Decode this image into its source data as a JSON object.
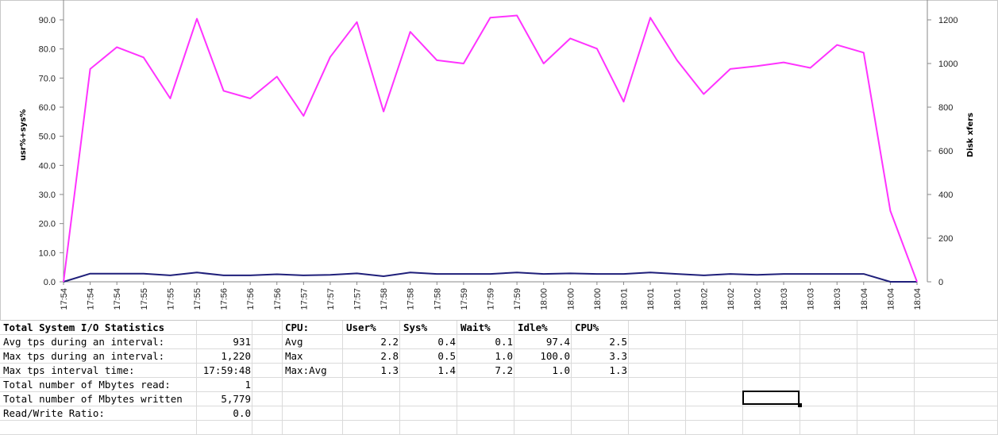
{
  "chart_data": {
    "type": "line",
    "ylabel_left": "usr%+sys%",
    "ylabel_right": "Disk xfers",
    "ylim_left": [
      0,
      90
    ],
    "yticks_left": [
      "0.0",
      "10.0",
      "20.0",
      "30.0",
      "40.0",
      "50.0",
      "60.0",
      "70.0",
      "80.0",
      "90.0"
    ],
    "ylim_right": [
      0,
      1200
    ],
    "yticks_right": [
      "0",
      "200",
      "400",
      "600",
      "800",
      "1000",
      "1200"
    ],
    "categories": [
      "17:54",
      "17:54",
      "17:54",
      "17:55",
      "17:55",
      "17:55",
      "17:56",
      "17:56",
      "17:56",
      "17:57",
      "17:57",
      "17:57",
      "17:58",
      "17:58",
      "17:58",
      "17:59",
      "17:59",
      "17:59",
      "18:00",
      "18:00",
      "18:00",
      "18:01",
      "18:01",
      "18:01",
      "18:02",
      "18:02",
      "18:02",
      "18:03",
      "18:03",
      "18:03",
      "18:04",
      "18:04",
      "18:04"
    ],
    "series": [
      {
        "axis": "left",
        "color": "#1f1f7a",
        "values": [
          0.0,
          2.8,
          2.8,
          2.8,
          2.2,
          3.2,
          2.2,
          2.2,
          2.6,
          2.2,
          2.4,
          2.9,
          1.9,
          3.2,
          2.7,
          2.7,
          2.7,
          3.2,
          2.7,
          2.9,
          2.7,
          2.7,
          3.2,
          2.7,
          2.2,
          2.7,
          2.4,
          2.7,
          2.7,
          2.7,
          2.7,
          0.0,
          0.0
        ]
      },
      {
        "axis": "right",
        "color": "#ff33ff",
        "values": [
          0,
          975,
          1075,
          1028,
          840,
          1205,
          875,
          840,
          940,
          760,
          1030,
          1190,
          780,
          1145,
          1015,
          1000,
          1210,
          1220,
          1000,
          1115,
          1068,
          825,
          1210,
          1015,
          860,
          975,
          988,
          1005,
          980,
          1085,
          1050,
          325,
          0
        ]
      }
    ]
  },
  "sheet": {
    "io": {
      "title": "Total System I/O Statistics",
      "rows": [
        {
          "label": "Avg tps during an interval:",
          "value": "931"
        },
        {
          "label": "Max tps during an interval:",
          "value": "1,220"
        },
        {
          "label": "Max tps interval time:",
          "value": "17:59:48"
        },
        {
          "label": "Total number of Mbytes read:",
          "value": "1"
        },
        {
          "label": "Total number of Mbytes written",
          "value": "5,779"
        },
        {
          "label": "Read/Write Ratio:",
          "value": "0.0"
        }
      ]
    },
    "cpu": {
      "headers": [
        "CPU:",
        "User%",
        "Sys%",
        "Wait%",
        "Idle%",
        "CPU%"
      ],
      "rows": [
        {
          "label": "Avg",
          "values": [
            "2.2",
            "0.4",
            "0.1",
            "97.4",
            "2.5"
          ]
        },
        {
          "label": "Max",
          "values": [
            "2.8",
            "0.5",
            "1.0",
            "100.0",
            "3.3"
          ]
        },
        {
          "label": "Max:Avg",
          "values": [
            "1.3",
            "1.4",
            "7.2",
            "1.0",
            "1.3"
          ]
        }
      ]
    }
  }
}
